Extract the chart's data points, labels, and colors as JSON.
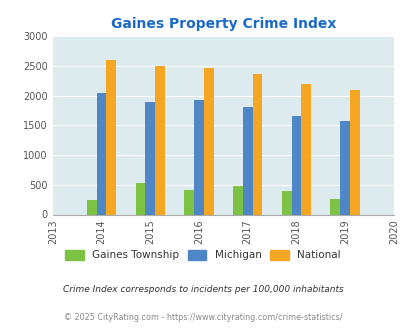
{
  "title": "Gaines Property Crime Index",
  "all_years": [
    2013,
    2014,
    2015,
    2016,
    2017,
    2018,
    2019,
    2020
  ],
  "bar_years": [
    2014,
    2015,
    2016,
    2017,
    2018,
    2019
  ],
  "gaines": [
    250,
    530,
    410,
    480,
    400,
    260
  ],
  "michigan": [
    2050,
    1900,
    1930,
    1810,
    1650,
    1570
  ],
  "national": [
    2600,
    2500,
    2460,
    2360,
    2200,
    2100
  ],
  "gaines_color": "#7dc242",
  "michigan_color": "#4f86c6",
  "national_color": "#f5a623",
  "bg_color": "#ddeaee",
  "fig_bg_color": "#ffffff",
  "title_color": "#1b6ac9",
  "grid_color": "#c8d8dc",
  "spine_color": "#aaaaaa",
  "tick_color": "#555555",
  "ylim": [
    0,
    3000
  ],
  "yticks": [
    0,
    500,
    1000,
    1500,
    2000,
    2500,
    3000
  ],
  "legend_labels": [
    "Gaines Township",
    "Michigan",
    "National"
  ],
  "footnote1": "Crime Index corresponds to incidents per 100,000 inhabitants",
  "footnote2": "© 2025 CityRating.com - https://www.cityrating.com/crime-statistics/",
  "footnote1_color": "#333333",
  "footnote2_color": "#888888",
  "bar_width": 0.2
}
